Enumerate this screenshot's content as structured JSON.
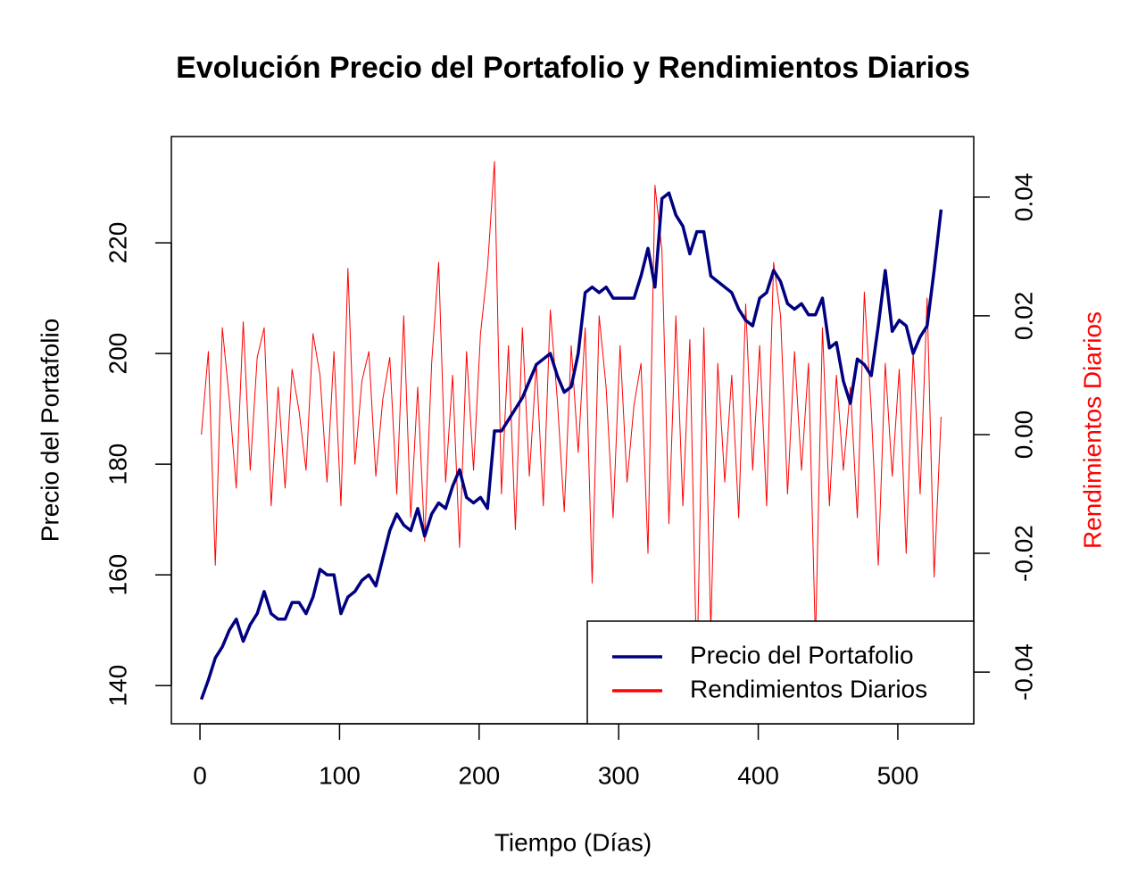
{
  "chart_data": {
    "type": "line",
    "title": "Evolución Precio del Portafolio y Rendimientos Diarios",
    "x_label": "Tiempo (Días)",
    "y_label": "Precio del Portafolio",
    "y2_label": "Rendimientos Diarios",
    "x": [
      1,
      6,
      11,
      16,
      21,
      26,
      31,
      36,
      41,
      46,
      51,
      56,
      61,
      66,
      71,
      76,
      81,
      86,
      91,
      96,
      101,
      106,
      111,
      116,
      121,
      126,
      131,
      136,
      141,
      146,
      151,
      156,
      161,
      166,
      171,
      176,
      181,
      186,
      191,
      196,
      201,
      206,
      211,
      216,
      221,
      226,
      231,
      236,
      241,
      246,
      251,
      256,
      261,
      266,
      271,
      276,
      281,
      286,
      291,
      296,
      301,
      306,
      311,
      316,
      321,
      326,
      331,
      336,
      341,
      346,
      351,
      356,
      361,
      366,
      371,
      376,
      381,
      386,
      391,
      396,
      401,
      406,
      411,
      416,
      421,
      426,
      431,
      436,
      441,
      446,
      451,
      456,
      461,
      466,
      471,
      476,
      481,
      486,
      491,
      496,
      501,
      506,
      511,
      516,
      521,
      526,
      531
    ],
    "series": [
      {
        "name": "Precio del Portafolio",
        "color": "#000080",
        "values": [
          137.5,
          141,
          145,
          147,
          150,
          152,
          148,
          151,
          153,
          157,
          153,
          152,
          152,
          155,
          155,
          153,
          156,
          161,
          160,
          160,
          153,
          156,
          157,
          159,
          160,
          158,
          163,
          168,
          171,
          169,
          168,
          172,
          167,
          171,
          173,
          172,
          176,
          179,
          174,
          173,
          174,
          172,
          186,
          186,
          188,
          190,
          192,
          195,
          198,
          199,
          200,
          196,
          193,
          194,
          200,
          211,
          212,
          211,
          212,
          210,
          210,
          210,
          210,
          214,
          219,
          212,
          228,
          229,
          225,
          223,
          218,
          222,
          222,
          214,
          213,
          212,
          211,
          208,
          206,
          205,
          210,
          211,
          215,
          213,
          209,
          208,
          209,
          207,
          207,
          210,
          201,
          202,
          195,
          191,
          199,
          198,
          196,
          205,
          215,
          204,
          206,
          205,
          200,
          203,
          205,
          215,
          226
        ]
      },
      {
        "name": "Rendimientos Diarios",
        "color": "#ff0000",
        "axis": "y2",
        "values": [
          0.0,
          0.014,
          -0.022,
          0.018,
          0.006,
          -0.009,
          0.019,
          -0.006,
          0.013,
          0.018,
          -0.012,
          0.008,
          -0.009,
          0.011,
          0.004,
          -0.006,
          0.017,
          0.01,
          -0.008,
          0.014,
          -0.012,
          0.028,
          -0.005,
          0.009,
          0.014,
          -0.007,
          0.006,
          0.013,
          -0.01,
          0.02,
          -0.014,
          0.008,
          -0.018,
          0.012,
          0.029,
          -0.008,
          0.01,
          -0.019,
          0.014,
          -0.006,
          0.017,
          0.028,
          0.046,
          -0.01,
          0.015,
          -0.016,
          0.018,
          -0.007,
          0.012,
          -0.012,
          0.021,
          0.006,
          -0.013,
          0.015,
          -0.003,
          0.018,
          -0.025,
          0.02,
          0.008,
          -0.014,
          0.015,
          -0.008,
          0.005,
          0.012,
          -0.02,
          0.042,
          0.031,
          -0.015,
          0.02,
          -0.012,
          0.016,
          -0.041,
          0.018,
          -0.033,
          0.012,
          -0.008,
          0.01,
          -0.014,
          0.022,
          -0.006,
          0.015,
          -0.012,
          0.029,
          0.02,
          -0.01,
          0.014,
          -0.006,
          0.012,
          -0.035,
          0.018,
          -0.012,
          0.01,
          -0.006,
          0.008,
          -0.014,
          0.024,
          0.004,
          -0.022,
          0.012,
          -0.007,
          0.011,
          -0.02,
          0.014,
          -0.01,
          0.023,
          -0.024,
          0.003
        ]
      }
    ],
    "xlim": [
      -20.5,
      554.4
    ],
    "xticks": [
      0,
      100,
      200,
      300,
      400,
      500
    ],
    "ylim": [
      133.1,
      239.2
    ],
    "yticks": [
      140,
      160,
      180,
      200,
      220
    ],
    "y2lim": [
      -0.0487,
      0.0502
    ],
    "y2ticks": [
      -0.04,
      -0.02,
      {
        "value": 0,
        "label": "0.00"
      },
      0.02,
      0.04
    ],
    "legend": "bottomright"
  }
}
